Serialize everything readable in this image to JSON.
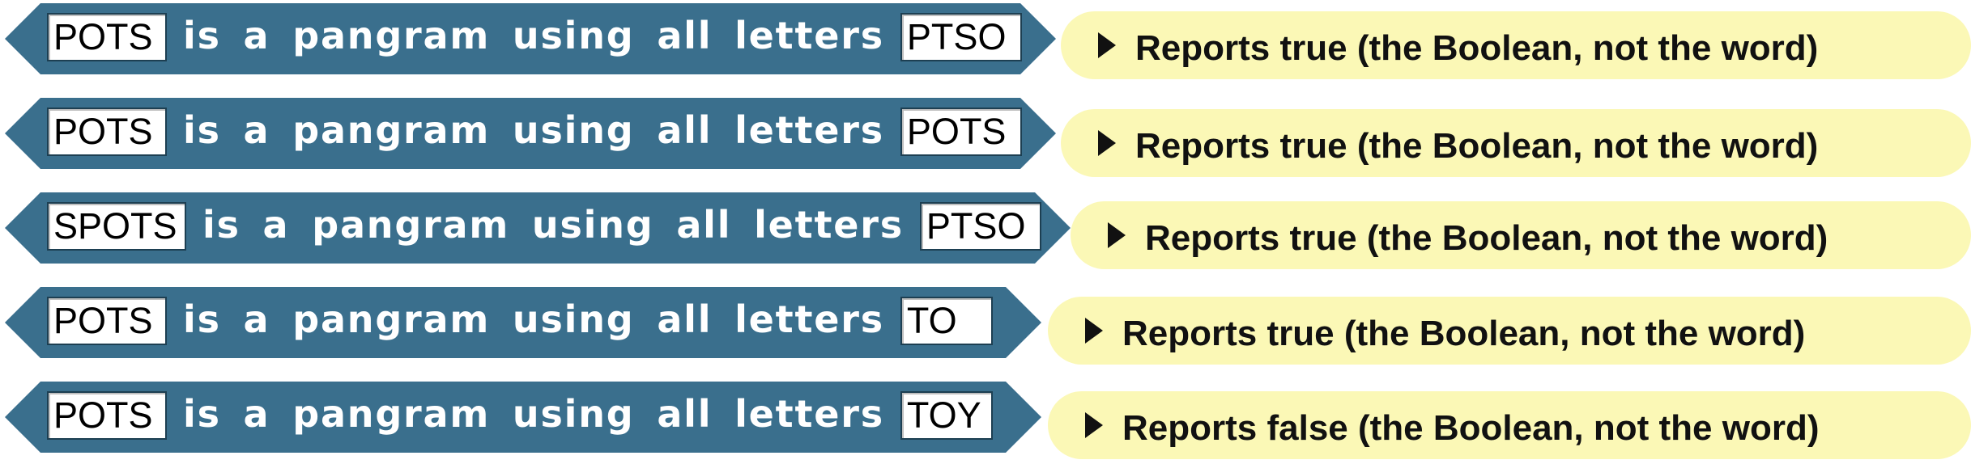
{
  "rows": [
    {
      "left_value": "POTS",
      "block_text": "is a pangram using all letters",
      "right_value": "PTSO",
      "result": "Reports true (the Boolean, not the word)"
    },
    {
      "left_value": "POTS",
      "block_text": "is a pangram using all letters",
      "right_value": "POTS",
      "result": "Reports true (the Boolean, not the word)"
    },
    {
      "left_value": "SPOTS",
      "block_text": "is a pangram using all letters",
      "right_value": "PTSO",
      "result": "Reports true (the Boolean, not the word)"
    },
    {
      "left_value": "POTS",
      "block_text": "is a pangram using all letters",
      "right_value": "TO",
      "result": "Reports true (the Boolean, not the word)"
    },
    {
      "left_value": "POTS",
      "block_text": "is a pangram using all letters",
      "right_value": "TOY",
      "result": "Reports false (the Boolean, not the word)"
    }
  ],
  "colors": {
    "block": "#3a6f8d",
    "result_bg": "#fbf8b6"
  }
}
